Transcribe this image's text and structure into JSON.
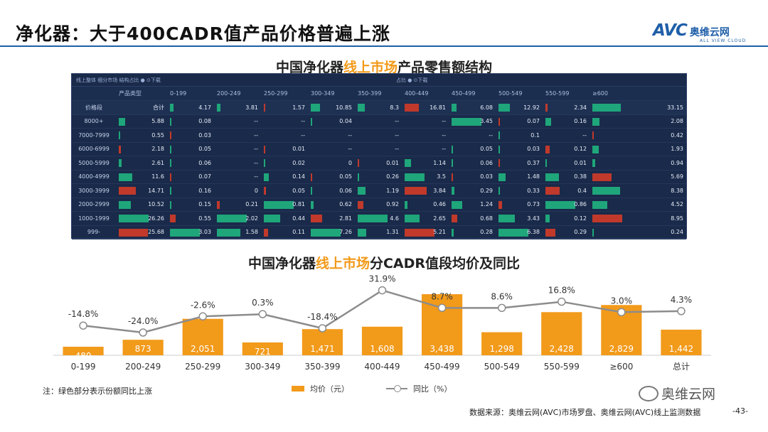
{
  "header": {
    "title": "净化器：大于400CADR值产品价格普遍上涨",
    "logo_main": "AVC",
    "logo_cn": "奥维云网",
    "logo_sub": "ALL VIEW CLOUD"
  },
  "table_section": {
    "title_pre": "中国净化器",
    "title_hl": "线上市场",
    "title_post": "产品零售额结构",
    "top_left": "线上整体 细分市场 结构占比 ●   ⊙下载",
    "top_right": "占比 ●   ⊙下载",
    "corner_label": "价格段",
    "type_header": "产品类型",
    "columns": [
      "0-199",
      "200-249",
      "250-299",
      "300-349",
      "350-399",
      "400-449",
      "450-499",
      "500-549",
      "550-599",
      "≥600"
    ],
    "rows": [
      {
        "label": "价格段",
        "type": "合计",
        "values": [
          "4.17",
          "3.81",
          "1.57",
          "10.85",
          "8.3",
          "16.81",
          "6.08",
          "12.92",
          "2.34",
          "33.15"
        ]
      },
      {
        "label": "8000+",
        "type": "5.88",
        "values": [
          "0.08",
          "--",
          "--",
          "0.04",
          "--",
          "--",
          "3.45",
          "0.07",
          "0.16",
          "2.08"
        ]
      },
      {
        "label": "7000-7999",
        "type": "0.55",
        "values": [
          "0.03",
          "--",
          "--",
          "--",
          "--",
          "--",
          "--",
          "0.1",
          "--",
          "0.42"
        ]
      },
      {
        "label": "6000-6999",
        "type": "2.18",
        "values": [
          "0.05",
          "--",
          "0.01",
          "--",
          "--",
          "--",
          "0.05",
          "0.03",
          "0.12",
          "1.93"
        ]
      },
      {
        "label": "5000-5999",
        "type": "2.61",
        "values": [
          "0.06",
          "--",
          "0.02",
          "0",
          "0.01",
          "1.14",
          "0.06",
          "0.37",
          "0.01",
          "0.94"
        ]
      },
      {
        "label": "4000-4999",
        "type": "11.6",
        "values": [
          "0.07",
          "--",
          "0.14",
          "0.05",
          "0.26",
          "3.5",
          "0.03",
          "1.48",
          "0.38",
          "5.69"
        ]
      },
      {
        "label": "3000-3999",
        "type": "14.71",
        "values": [
          "0.16",
          "0",
          "0.05",
          "0.06",
          "1.19",
          "3.84",
          "0.29",
          "0.33",
          "0.4",
          "8.38"
        ]
      },
      {
        "label": "2000-2999",
        "type": "10.52",
        "values": [
          "0.15",
          "0.21",
          "0.81",
          "0.62",
          "0.92",
          "0.46",
          "1.24",
          "0.73",
          "0.86",
          "4.52"
        ]
      },
      {
        "label": "1000-1999",
        "type": "26.26",
        "values": [
          "0.55",
          "2.02",
          "0.44",
          "2.81",
          "4.6",
          "2.65",
          "0.68",
          "3.43",
          "0.12",
          "8.95"
        ]
      },
      {
        "label": "999-",
        "type": "25.68",
        "values": [
          "3.03",
          "1.58",
          "0.11",
          "7.26",
          "1.31",
          "5.21",
          "0.28",
          "6.38",
          "0.29",
          "0.24"
        ]
      }
    ],
    "colors": {
      "up": "#1fa67a",
      "down": "#c0392b"
    }
  },
  "chart_section": {
    "title_pre": "中国净化器",
    "title_hl": "线上市场",
    "title_post": "分CADR值段均价及同比"
  },
  "chart_data": {
    "type": "bar",
    "categories": [
      "0-199",
      "200-249",
      "250-299",
      "300-349",
      "350-399",
      "400-449",
      "450-499",
      "500-549",
      "550-599",
      "≥600",
      "总计"
    ],
    "series": [
      {
        "name": "均价（元）",
        "type": "bar",
        "values": [
          480,
          873,
          2051,
          721,
          1471,
          1608,
          3438,
          1298,
          2428,
          2829,
          1442
        ],
        "labels": [
          "480",
          "873",
          "2,051",
          "721",
          "1,471",
          "1,608",
          "3,438",
          "1,298",
          "2,428",
          "2,829",
          "1,442"
        ],
        "color": "#f29a1a"
      },
      {
        "name": "同比（%）",
        "type": "line",
        "values": [
          -14.8,
          -24.0,
          -2.6,
          0.3,
          -18.4,
          31.9,
          8.7,
          8.6,
          16.8,
          3.0,
          4.3
        ],
        "labels": [
          "-14.8%",
          "-24.0%",
          "-2.6%",
          "0.3%",
          "-18.4%",
          "31.9%",
          "8.7%",
          "8.6%",
          "16.8%",
          "3.0%",
          "4.3%"
        ],
        "color": "#8c8c8c"
      }
    ],
    "title": "中国净化器线上市场分CADR值段均价及同比",
    "ylim_bar": [
      0,
      4000
    ],
    "ylim_line": [
      -40,
      40
    ]
  },
  "legend": {
    "bar": "均价（元）",
    "line": "同比（%）"
  },
  "note": "注：绿色部分表示份额同比上涨",
  "source": "数据来源：奥维云网(AVC)市场罗盘、奥维云网(AVC)线上监测数据",
  "page_number": "-43-",
  "watermark": "奥维云网"
}
